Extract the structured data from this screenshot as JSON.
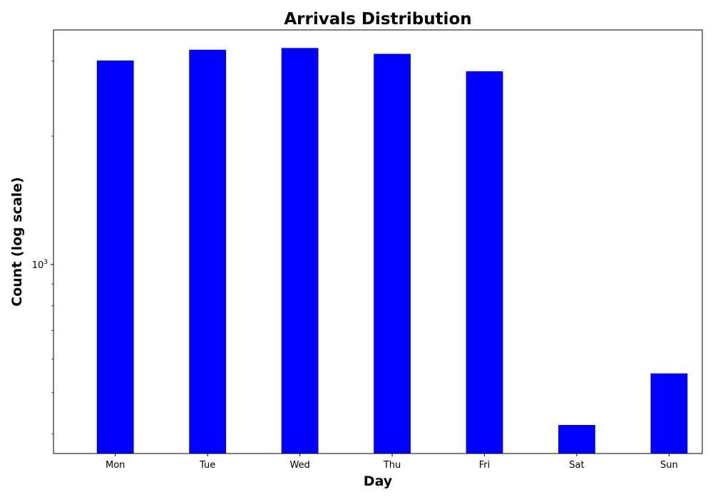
{
  "chart_data": {
    "type": "bar",
    "title": "Arrivals Distribution",
    "xlabel": "Day",
    "ylabel": "Count (log scale)",
    "categories": [
      "Mon",
      "Tue",
      "Wed",
      "Thu",
      "Fri",
      "Sat",
      "Sun"
    ],
    "values": [
      3010,
      3190,
      3220,
      3120,
      2840,
      420,
      555
    ],
    "ylim": [
      360,
      3550
    ],
    "yscale": "log",
    "y_major_tick_label": {
      "base": "10",
      "exponent": "3"
    },
    "bar_color": "#0000ff",
    "grid": false,
    "legend": "none"
  }
}
